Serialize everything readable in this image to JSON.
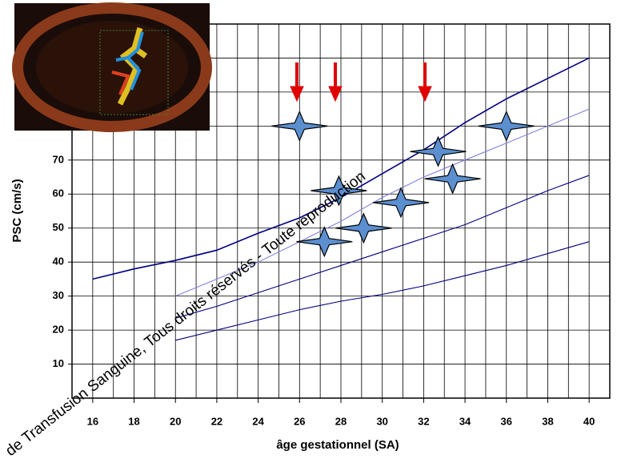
{
  "chart_data": {
    "type": "line",
    "xlabel": "âge gestationnel (SA)",
    "ylabel": "PSC (cm/s)",
    "watermark": "de Transfusion Sanguine, Tous droits réservés - Toute reproduction",
    "xlim": [
      15,
      41
    ],
    "ylim": [
      0,
      110
    ],
    "xticks": [
      16,
      18,
      20,
      22,
      24,
      26,
      28,
      30,
      32,
      34,
      36,
      38,
      40
    ],
    "yticks": [
      10,
      20,
      30,
      40,
      50,
      60,
      70
    ],
    "xgrid": [
      15,
      16,
      17,
      18,
      19,
      20,
      21,
      22,
      23,
      24,
      25,
      26,
      27,
      28,
      29,
      30,
      31,
      32,
      33,
      34,
      35,
      36,
      37,
      38,
      39,
      40,
      41
    ],
    "ygrid": [
      0,
      10,
      20,
      30,
      40,
      50,
      60,
      70,
      80,
      90,
      100,
      110
    ],
    "grid": true,
    "x": [
      16,
      18,
      20,
      22,
      24,
      26,
      28,
      30,
      32,
      34,
      36,
      38,
      40
    ],
    "series": [
      {
        "color": "#000080",
        "values": [
          35,
          38,
          40.5,
          43.5,
          48.5,
          53,
          59,
          66,
          73,
          81,
          88,
          94,
          100
        ]
      },
      {
        "color": "#8080e0",
        "values": [
          null,
          null,
          30,
          35,
          40,
          46,
          52,
          59,
          65,
          70,
          75,
          80,
          85
        ]
      },
      {
        "color": "#000080",
        "values": [
          null,
          null,
          23.5,
          27,
          31,
          35,
          39,
          43,
          47,
          51,
          56,
          61,
          65.5
        ]
      },
      {
        "color": "#000080",
        "values": [
          null,
          null,
          17,
          20,
          23,
          26,
          28.5,
          30.5,
          33,
          36,
          39,
          42.5,
          46
        ]
      }
    ],
    "scatter": {
      "color": "#5b8fcf",
      "x": [
        26,
        27.9,
        27.2,
        29.1,
        30.9,
        32.7,
        33.4,
        36
      ],
      "y": [
        80,
        61,
        46,
        50,
        57.5,
        72.5,
        64.5,
        80
      ]
    }
  }
}
